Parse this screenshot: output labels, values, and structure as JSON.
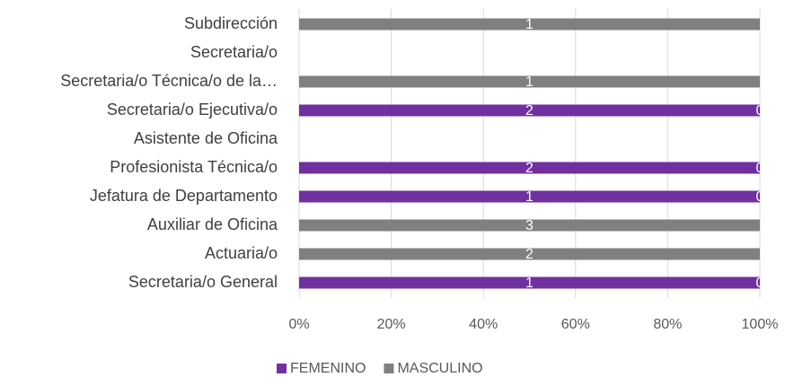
{
  "chart_data": {
    "type": "bar",
    "orientation": "horizontal",
    "stacking": "percent",
    "categories": [
      "Subdirección",
      "Secretaria/o",
      "Secretaria/o Técnica/o de la…",
      "Secretaria/o Ejecutiva/o",
      "Asistente de Oficina",
      "Profesionista Técnica/o",
      "Jefatura de Departamento",
      "Auxiliar de Oficina",
      "Actuaria/o",
      "Secretaria/o General"
    ],
    "series": [
      {
        "name": "FEMENINO",
        "color": "#7030a0",
        "values": [
          0,
          null,
          0,
          2,
          null,
          2,
          1,
          0,
          0,
          1
        ]
      },
      {
        "name": "MASCULINO",
        "color": "#808080",
        "values": [
          1,
          null,
          1,
          0,
          null,
          0,
          0,
          3,
          2,
          0
        ]
      }
    ],
    "xlim": [
      0,
      100
    ],
    "xticks": [
      {
        "value": 0,
        "label": "0%"
      },
      {
        "value": 20,
        "label": "20%"
      },
      {
        "value": 40,
        "label": "40%"
      },
      {
        "value": 60,
        "label": "60%"
      },
      {
        "value": 80,
        "label": "80%"
      },
      {
        "value": 100,
        "label": "100%"
      }
    ],
    "grid": true,
    "legend": "bottom"
  }
}
